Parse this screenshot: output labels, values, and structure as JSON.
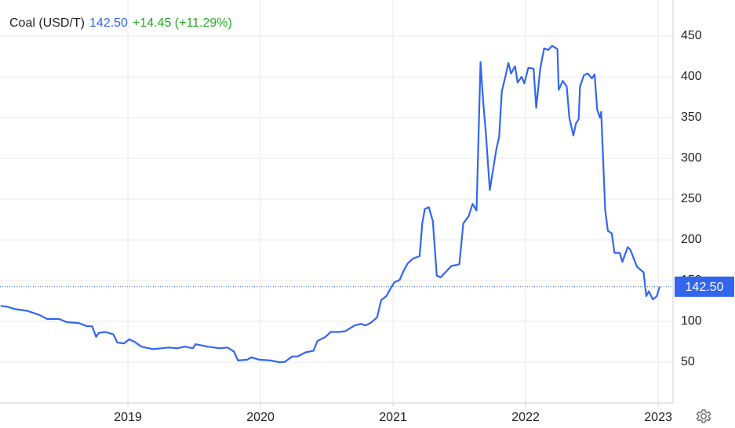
{
  "chart_data": {
    "type": "line",
    "title": "Coal (USD/T)",
    "last_price": {
      "value": 142.5,
      "label": "142.50"
    },
    "change": "+14.45 (+11.29%)",
    "x": [
      2018.04,
      2018.09,
      2018.15,
      2018.24,
      2018.33,
      2018.39,
      2018.48,
      2018.54,
      2018.63,
      2018.69,
      2018.73,
      2018.76,
      2018.78,
      2018.83,
      2018.89,
      2018.92,
      2018.97,
      2019.01,
      2019.05,
      2019.1,
      2019.19,
      2019.25,
      2019.31,
      2019.37,
      2019.43,
      2019.49,
      2019.51,
      2019.6,
      2019.69,
      2019.75,
      2019.8,
      2019.83,
      2019.9,
      2019.93,
      2019.99,
      2020.08,
      2020.14,
      2020.18,
      2020.24,
      2020.28,
      2020.34,
      2020.4,
      2020.43,
      2020.49,
      2020.53,
      2020.59,
      2020.64,
      2020.71,
      2020.76,
      2020.79,
      2020.83,
      2020.88,
      2020.91,
      2020.95,
      2020.98,
      2021.01,
      2021.05,
      2021.08,
      2021.11,
      2021.15,
      2021.2,
      2021.22,
      2021.24,
      2021.27,
      2021.3,
      2021.33,
      2021.36,
      2021.4,
      2021.44,
      2021.5,
      2021.53,
      2021.57,
      2021.6,
      2021.63,
      2021.66,
      2021.68,
      2021.7,
      2021.73,
      2021.78,
      2021.8,
      2021.82,
      2021.85,
      2021.87,
      2021.89,
      2021.92,
      2021.94,
      2021.97,
      2021.99,
      2022.02,
      2022.06,
      2022.08,
      2022.11,
      2022.14,
      2022.17,
      2022.2,
      2022.24,
      2022.25,
      2022.28,
      2022.31,
      2022.33,
      2022.36,
      2022.38,
      2022.4,
      2022.41,
      2022.44,
      2022.47,
      2022.5,
      2022.52,
      2022.54,
      2022.56,
      2022.57,
      2022.6,
      2022.62,
      2022.65,
      2022.67,
      2022.71,
      2022.73,
      2022.77,
      2022.79,
      2022.84,
      2022.89,
      2022.91,
      2022.93,
      2022.96,
      2022.99,
      2023.01
    ],
    "series": [
      {
        "color": "#3366ee",
        "values": [
          119,
          118,
          115,
          113,
          108,
          103,
          103,
          99,
          98,
          94,
          94,
          81,
          86,
          87,
          84,
          74,
          73,
          78,
          75,
          69,
          66,
          67,
          68,
          67,
          69,
          67,
          72,
          69,
          67,
          68,
          63,
          52,
          53,
          56,
          53,
          52,
          50,
          50,
          57,
          57,
          62,
          64,
          76,
          81,
          87,
          87,
          88,
          95,
          97,
          95,
          98,
          105,
          126,
          131,
          140,
          148,
          151,
          162,
          171,
          177,
          180,
          220,
          238,
          240,
          223,
          156,
          154,
          161,
          168,
          170,
          220,
          229,
          244,
          236,
          418,
          369,
          331,
          261,
          312,
          326,
          382,
          402,
          417,
          404,
          413,
          393,
          400,
          392,
          411,
          410,
          362,
          410,
          435,
          433,
          438,
          434,
          384,
          395,
          388,
          350,
          328,
          343,
          348,
          388,
          402,
          404,
          398,
          403,
          360,
          350,
          357,
          237,
          211,
          208,
          184,
          184,
          173,
          191,
          188,
          167,
          160,
          131,
          137,
          127,
          131,
          142.5
        ]
      }
    ],
    "xlim": [
      2018.035,
      2023.112
    ],
    "ylim": [
      0,
      494.2
    ],
    "xticks": [
      2019,
      2020,
      2021,
      2022,
      2023
    ],
    "yticks": [
      50,
      100,
      150,
      200,
      250,
      300,
      350,
      400,
      450
    ],
    "grid": true
  }
}
